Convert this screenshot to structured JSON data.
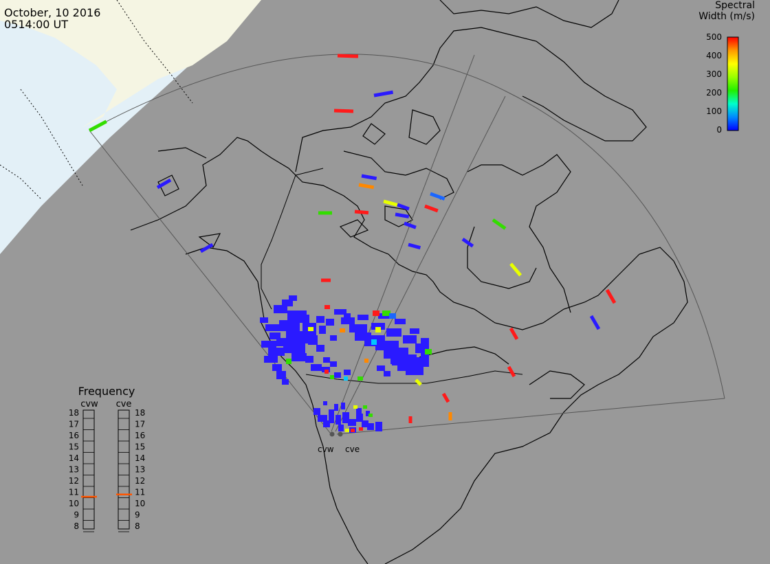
{
  "header": {
    "date": "October, 10 2016",
    "time": "0514:00 UT"
  },
  "colorbar": {
    "title_line1": "Spectral",
    "title_line2": "Width (m/s)",
    "ticks": [
      "500",
      "400",
      "300",
      "200",
      "100",
      "0"
    ],
    "stops": [
      "#0000ff",
      "#0088ff",
      "#00ffcc",
      "#22ee00",
      "#99ff00",
      "#ffff00",
      "#ff9900",
      "#ff0000"
    ]
  },
  "frequency_panel": {
    "title": "Frequency",
    "radars": [
      {
        "code": "cvw",
        "value_mhz": 10.6
      },
      {
        "code": "cve",
        "value_mhz": 10.8
      }
    ],
    "scale": [
      "18",
      "17",
      "16",
      "15",
      "14",
      "13",
      "12",
      "11",
      "10",
      "9",
      "8"
    ],
    "marker_color": "#ff5500"
  },
  "site_labels": [
    "cvw",
    "cve"
  ],
  "colors": {
    "ocean": "#999999",
    "land_pole": "#f5f5e3",
    "land_pole_sea": "#e4f0f8",
    "scatter_low": "#2a1aff",
    "red": "#ff1a1a",
    "orange": "#ff8800",
    "yellow": "#e8ff00",
    "green": "#33dd00",
    "cyan": "#00c8ff"
  }
}
